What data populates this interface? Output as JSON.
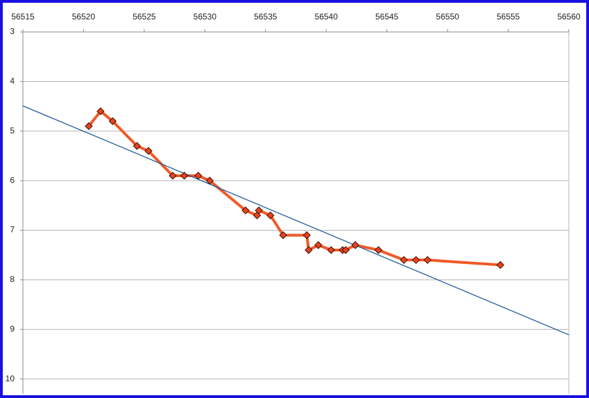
{
  "chart_data": {
    "type": "scatter-line",
    "x": [
      56520.43,
      56521.4,
      56522.4,
      56524.4,
      56525.35,
      56527.35,
      56528.3,
      56529.45,
      56530.4,
      56533.35,
      56534.3,
      56534.45,
      56535.4,
      56536.45,
      56538.4,
      56538.55,
      56539.35,
      56540.4,
      56541.35,
      56541.6,
      56542.4,
      56544.3,
      56546.4,
      56547.4,
      56548.35,
      56554.35
    ],
    "values": [
      4.9,
      4.6,
      4.8,
      5.3,
      5.4,
      5.9,
      5.9,
      5.9,
      6.0,
      6.6,
      6.7,
      6.6,
      6.7,
      7.1,
      7.1,
      7.4,
      7.3,
      7.4,
      7.4,
      7.4,
      7.3,
      7.4,
      7.6,
      7.6,
      7.6,
      7.7
    ],
    "color": "#f05a28",
    "marker_color": "#e8431f",
    "trendline": {
      "x": [
        56515,
        56560
      ],
      "values": [
        4.49,
        9.11
      ],
      "color": "#1f5a99"
    },
    "xlim": [
      56515,
      56560
    ],
    "xticks": [
      56515,
      56520,
      56525,
      56530,
      56535,
      56540,
      56545,
      56550,
      56555,
      56560
    ],
    "ylim": [
      3,
      10.3
    ],
    "yticks": [
      3,
      4,
      5,
      6,
      7,
      8,
      9,
      10
    ],
    "y_inverted": true,
    "x_axis_position": "top",
    "grid": true
  }
}
